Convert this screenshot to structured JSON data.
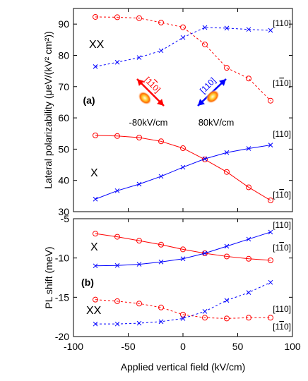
{
  "chart_data": [
    {
      "id": "a",
      "type": "line",
      "panel_label": "(a)",
      "ylabel": "Lateral polarizability (μeV/(kV² cm²))",
      "ylim": [
        30,
        95
      ],
      "yticks": [
        30,
        40,
        50,
        60,
        70,
        80,
        90
      ],
      "xlim": [
        -100,
        100
      ],
      "grid": false,
      "x": [
        -80,
        -60,
        -40,
        -20,
        0,
        20,
        40,
        60,
        80
      ],
      "groups": [
        {
          "label": "XX",
          "series": [
            {
              "color": "#ff0000",
              "marker": "circle",
              "style": "dashed",
              "end_label": "[1-10]",
              "values": [
                92.3,
                92.2,
                91.9,
                90.5,
                89.0,
                83.5,
                76.0,
                72.6,
                65.5
              ]
            },
            {
              "color": "#0000ff",
              "marker": "cross",
              "style": "dashed",
              "end_label": "[110]",
              "values": [
                76.4,
                77.8,
                79.3,
                81.5,
                85.7,
                88.9,
                88.7,
                88.3,
                88.0
              ]
            }
          ]
        },
        {
          "label": "X",
          "series": [
            {
              "color": "#ff0000",
              "marker": "circle",
              "style": "solid",
              "end_label": "[1-10]",
              "values": [
                54.4,
                54.2,
                53.7,
                52.5,
                50.3,
                46.7,
                42.7,
                37.8,
                33.6
              ]
            },
            {
              "color": "#0000ff",
              "marker": "cross",
              "style": "solid",
              "end_label": "[110]",
              "values": [
                34.0,
                36.7,
                38.8,
                41.3,
                44.2,
                46.9,
                48.9,
                50.2,
                51.3
              ]
            }
          ]
        }
      ],
      "insets": [
        {
          "field": "-80kV/cm",
          "direction": "[1-10]",
          "color": "#ff0000"
        },
        {
          "field": "80kV/cm",
          "direction": "[110]",
          "color": "#0000ff"
        }
      ]
    },
    {
      "id": "b",
      "type": "line",
      "panel_label": "(b)",
      "ylabel": "PL shift (meV)",
      "xlabel": "Applied vertical field (kV/cm)",
      "ylim": [
        -20,
        -5
      ],
      "yticks": [
        -20,
        -15,
        -10,
        -5
      ],
      "xlim": [
        -100,
        100
      ],
      "xticks": [
        -100,
        -50,
        0,
        50,
        100
      ],
      "grid": false,
      "x": [
        -80,
        -60,
        -40,
        -20,
        0,
        20,
        40,
        60,
        80
      ],
      "groups": [
        {
          "label": "X",
          "series": [
            {
              "color": "#ff0000",
              "marker": "circle",
              "style": "solid",
              "end_label": "[1-10]",
              "values": [
                -6.9,
                -7.3,
                -7.8,
                -8.3,
                -8.9,
                -9.4,
                -9.8,
                -10.1,
                -10.3
              ]
            },
            {
              "color": "#0000ff",
              "marker": "cross",
              "style": "solid",
              "end_label": "[110]",
              "values": [
                -11.0,
                -10.95,
                -10.8,
                -10.5,
                -10.1,
                -9.4,
                -8.5,
                -7.6,
                -6.7
              ]
            }
          ]
        },
        {
          "label": "XX",
          "series": [
            {
              "color": "#ff0000",
              "marker": "circle",
              "style": "dashed",
              "end_label": "[1-10]",
              "values": [
                -15.3,
                -15.5,
                -15.8,
                -16.3,
                -17.2,
                -17.6,
                -17.7,
                -17.6,
                -17.6
              ]
            },
            {
              "color": "#0000ff",
              "marker": "cross",
              "style": "dashed",
              "end_label": "[110]",
              "values": [
                -18.4,
                -18.4,
                -18.3,
                -18.1,
                -17.7,
                -16.8,
                -15.4,
                -14.4,
                -13.1
              ]
            }
          ]
        }
      ]
    }
  ]
}
